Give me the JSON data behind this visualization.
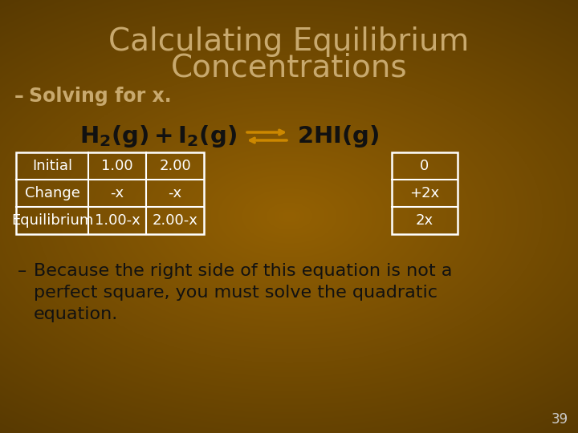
{
  "title_line1": "Calculating Equilibrium",
  "title_line2": "Concentrations",
  "subtitle": "Solving for x.",
  "title_color": "#c8a96e",
  "subtitle_color": "#c8a96e",
  "equation_color": "#111111",
  "text_color": "#111111",
  "table_text_color": "#ffffff",
  "table1_rows": [
    "Initial",
    "Change",
    "Equilibrium"
  ],
  "table1_col1": [
    "1.00",
    "-x",
    "1.00-x"
  ],
  "table1_col2": [
    "2.00",
    "-x",
    "2.00-x"
  ],
  "table2_col1": [
    "0",
    "+2x",
    "2x"
  ],
  "bullet_dash": "–",
  "bullet_text_line1": "Because the right side of this equation is not a",
  "bullet_text_line2": "perfect square, you must solve the quadratic",
  "bullet_text_line3": "equation.",
  "page_number": "39",
  "arrow_color": "#cc8800",
  "bg_left_color": "#4a2f00",
  "bg_mid_color": "#8B6500",
  "bg_right_color": "#3a2500"
}
